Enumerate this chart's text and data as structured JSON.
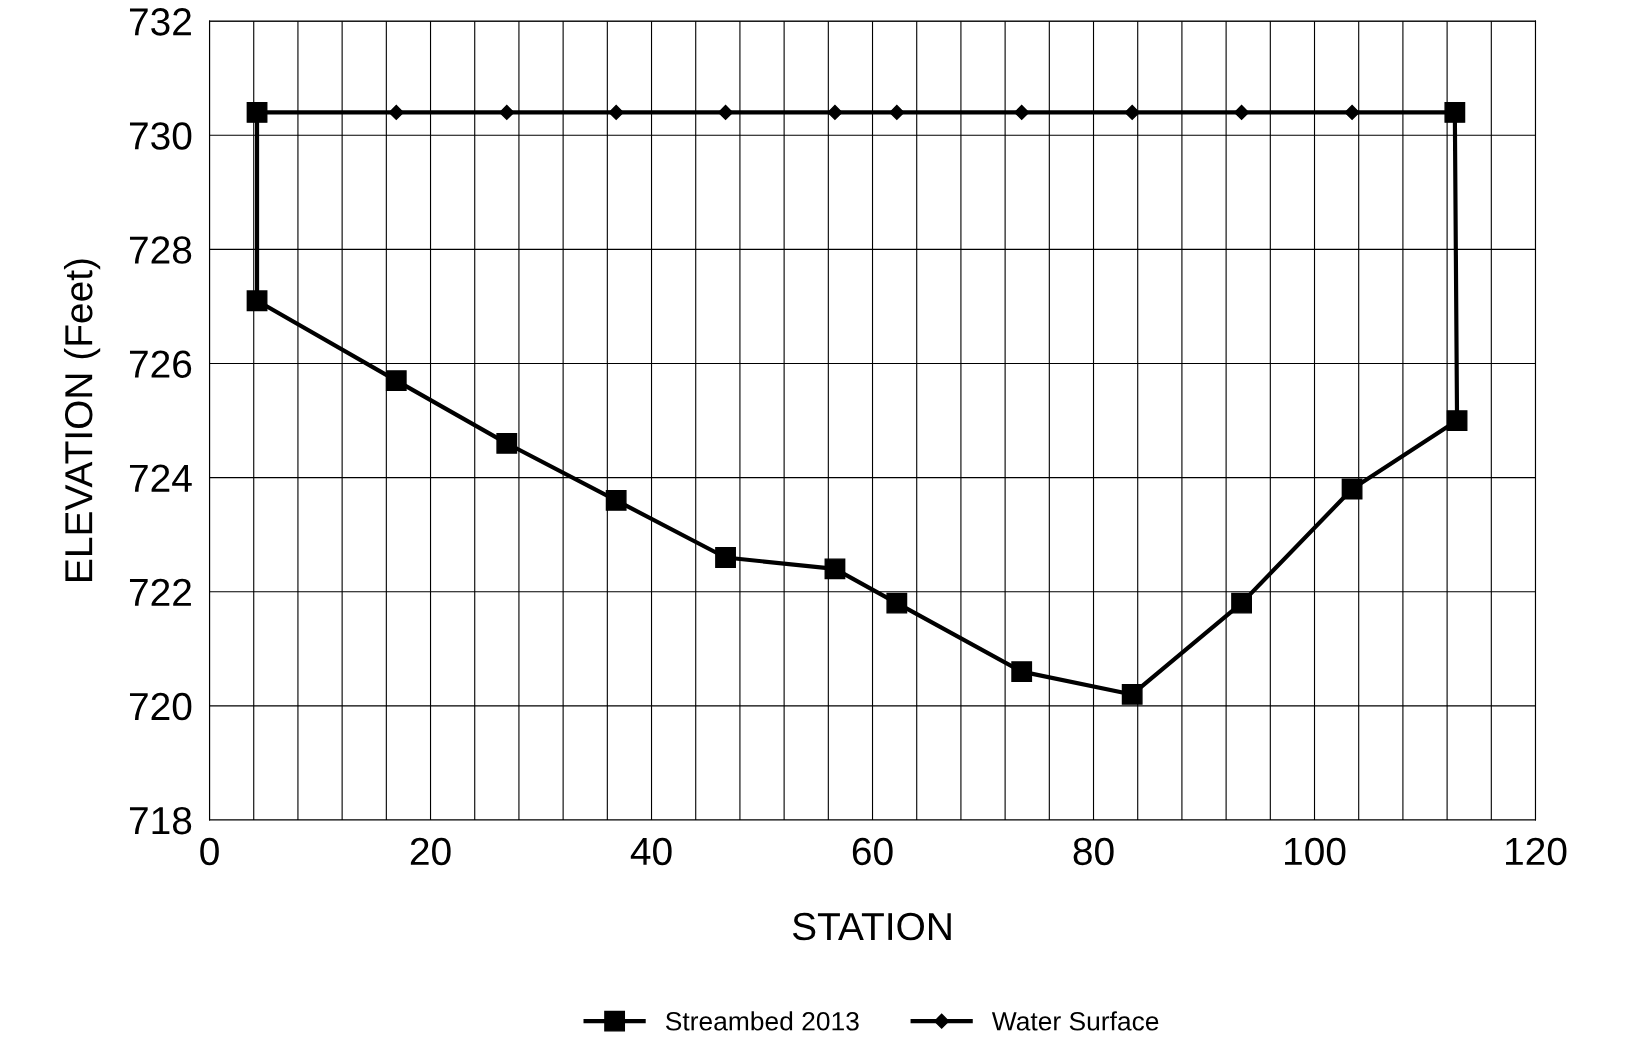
{
  "chart_data": {
    "type": "line",
    "xlabel": "STATION",
    "ylabel": "ELEVATION (Feet)",
    "xlim": [
      0,
      120
    ],
    "ylim": [
      718,
      732
    ],
    "xticks": [
      0,
      {
        "value": 4,
        "label": null
      },
      {
        "value": 8,
        "label": null
      },
      {
        "value": 12,
        "label": null
      },
      {
        "value": 16,
        "label": null
      },
      20,
      {
        "value": 24,
        "label": null
      },
      {
        "value": 28,
        "label": null
      },
      {
        "value": 32,
        "label": null
      },
      {
        "value": 36,
        "label": null
      },
      40,
      {
        "value": 44,
        "label": null
      },
      {
        "value": 48,
        "label": null
      },
      {
        "value": 52,
        "label": null
      },
      {
        "value": 56,
        "label": null
      },
      60,
      {
        "value": 64,
        "label": null
      },
      {
        "value": 68,
        "label": null
      },
      {
        "value": 72,
        "label": null
      },
      {
        "value": 76,
        "label": null
      },
      80,
      {
        "value": 84,
        "label": null
      },
      {
        "value": 88,
        "label": null
      },
      {
        "value": 92,
        "label": null
      },
      {
        "value": 96,
        "label": null
      },
      100,
      {
        "value": 104,
        "label": null
      },
      {
        "value": 108,
        "label": null
      },
      {
        "value": 112,
        "label": null
      },
      {
        "value": 116,
        "label": null
      },
      120
    ],
    "yticks": [
      718,
      720,
      722,
      724,
      726,
      728,
      730,
      732
    ],
    "grid": true,
    "legend": "bottom",
    "line_style": "solid",
    "series": [
      {
        "name": "Streambed 2013",
        "color": "#000000",
        "marker": "square",
        "x": [
          4.3,
          4.3,
          16.9,
          26.9,
          36.8,
          46.7,
          56.6,
          62.2,
          73.5,
          83.5,
          93.4,
          103.4,
          112.9,
          112.7
        ],
        "values": [
          730.4,
          727.1,
          725.7,
          724.6,
          723.6,
          722.6,
          722.4,
          721.8,
          720.6,
          720.2,
          721.8,
          723.8,
          725.0,
          730.4
        ]
      },
      {
        "name": "Water Surface",
        "color": "#000000",
        "marker": "diamond",
        "x": [
          4.3,
          16.9,
          26.9,
          36.8,
          46.7,
          56.6,
          62.2,
          73.5,
          83.5,
          93.4,
          103.4,
          112.7
        ],
        "values": [
          730.4,
          730.4,
          730.4,
          730.4,
          730.4,
          730.4,
          730.4,
          730.4,
          730.4,
          730.4,
          730.4,
          730.4
        ]
      }
    ]
  }
}
